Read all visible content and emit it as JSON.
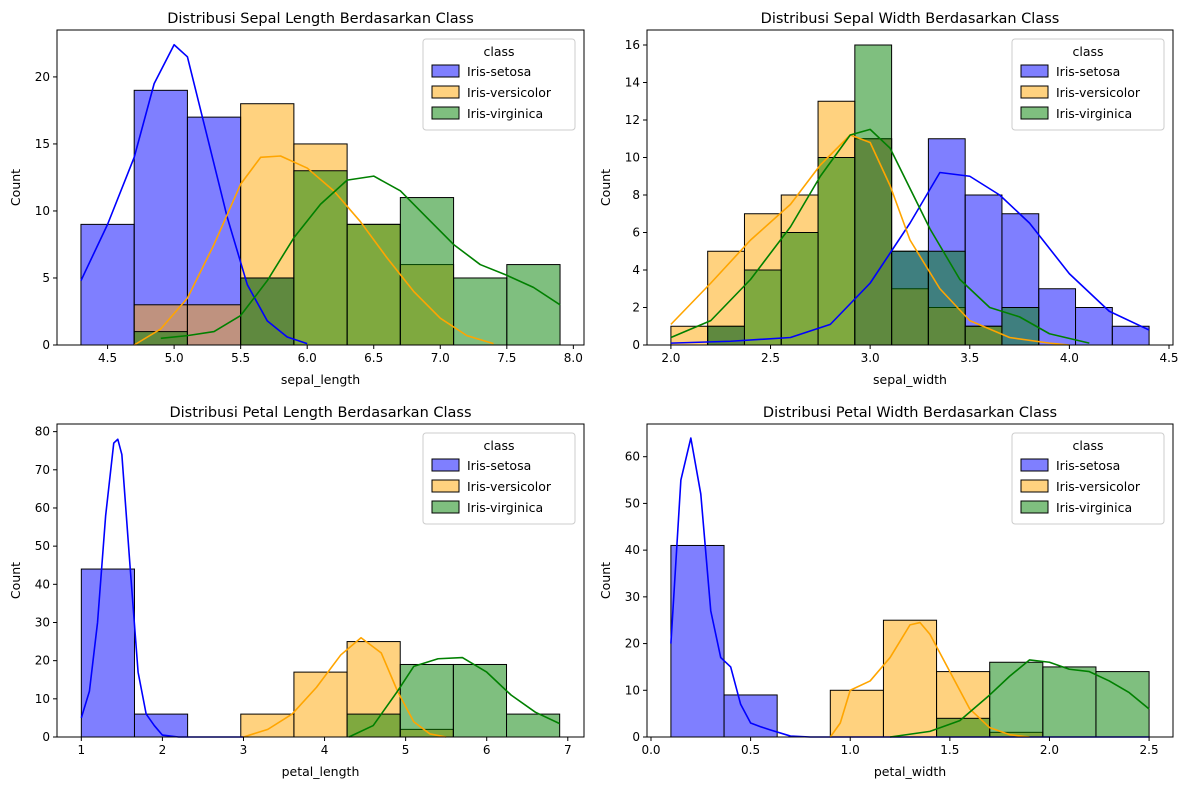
{
  "colors": {
    "setosa": "#0000ff",
    "versicolor": "#ffa500",
    "virginica": "#008000"
  },
  "chart_data": [
    {
      "type": "bar",
      "title": "Distribusi Sepal Length Berdasarkan Class",
      "xlabel": "sepal_length",
      "ylabel": "Count",
      "xlim": [
        4.12,
        8.08
      ],
      "ylim": [
        0,
        23.5
      ],
      "xticks": [
        4.5,
        5.0,
        5.5,
        6.0,
        6.5,
        7.0,
        7.5,
        8.0
      ],
      "xtick_labels": [
        "4.5",
        "5.0",
        "5.5",
        "6.0",
        "6.5",
        "7.0",
        "7.5",
        "8.0"
      ],
      "yticks": [
        0,
        5,
        10,
        15,
        20
      ],
      "ytick_labels": [
        "0",
        "5",
        "10",
        "15",
        "20"
      ],
      "bin_edges": [
        4.3,
        4.7,
        5.1,
        5.5,
        5.9,
        6.3,
        6.7,
        7.1,
        7.5,
        7.9
      ],
      "legend": {
        "title": "class",
        "position": "top-right",
        "entries": [
          "Iris-setosa",
          "Iris-versicolor",
          "Iris-virginica"
        ]
      },
      "series": [
        {
          "name": "Iris-setosa",
          "color": "#0000ff",
          "values": [
            9,
            19,
            17,
            5,
            0,
            0,
            0,
            0,
            0
          ],
          "kde": [
            [
              4.3,
              4.8
            ],
            [
              4.5,
              9
            ],
            [
              4.7,
              14
            ],
            [
              4.85,
              19.5
            ],
            [
              5.0,
              22.4
            ],
            [
              5.1,
              21.5
            ],
            [
              5.25,
              15.5
            ],
            [
              5.4,
              9.5
            ],
            [
              5.55,
              4.5
            ],
            [
              5.7,
              1.8
            ],
            [
              5.85,
              0.6
            ],
            [
              6.0,
              0.1
            ]
          ]
        },
        {
          "name": "Iris-versicolor",
          "color": "#ffa500",
          "values": [
            0,
            3,
            3,
            18,
            15,
            9,
            6,
            0,
            0
          ],
          "kde": [
            [
              4.7,
              0
            ],
            [
              4.9,
              1.2
            ],
            [
              5.1,
              3.5
            ],
            [
              5.3,
              7.5
            ],
            [
              5.5,
              12
            ],
            [
              5.65,
              14
            ],
            [
              5.8,
              14.1
            ],
            [
              6.0,
              13.2
            ],
            [
              6.2,
              11.5
            ],
            [
              6.4,
              9.2
            ],
            [
              6.6,
              6.5
            ],
            [
              6.8,
              4
            ],
            [
              7.0,
              2
            ],
            [
              7.2,
              0.7
            ],
            [
              7.4,
              0.1
            ]
          ]
        },
        {
          "name": "Iris-virginica",
          "color": "#008000",
          "values": [
            0,
            1,
            0,
            5,
            13,
            9,
            11,
            5,
            6
          ],
          "kde": [
            [
              4.9,
              0.5
            ],
            [
              5.1,
              0.7
            ],
            [
              5.3,
              1
            ],
            [
              5.5,
              2.2
            ],
            [
              5.7,
              4.8
            ],
            [
              5.9,
              8
            ],
            [
              6.1,
              10.5
            ],
            [
              6.3,
              12.3
            ],
            [
              6.5,
              12.6
            ],
            [
              6.7,
              11.5
            ],
            [
              6.9,
              9.5
            ],
            [
              7.1,
              7.5
            ],
            [
              7.3,
              6
            ],
            [
              7.5,
              5.2
            ],
            [
              7.7,
              4.3
            ],
            [
              7.9,
              3
            ]
          ]
        }
      ]
    },
    {
      "type": "bar",
      "title": "Distribusi Sepal Width Berdasarkan Class",
      "xlabel": "sepal_width",
      "ylabel": "Count",
      "xlim": [
        1.88,
        4.52
      ],
      "ylim": [
        0,
        16.8
      ],
      "xticks": [
        2.0,
        2.5,
        3.0,
        3.5,
        4.0,
        4.5
      ],
      "xtick_labels": [
        "2.0",
        "2.5",
        "3.0",
        "3.5",
        "4.0",
        "4.5"
      ],
      "yticks": [
        0,
        2,
        4,
        6,
        8,
        10,
        12,
        14,
        16
      ],
      "ytick_labels": [
        "0",
        "2",
        "4",
        "6",
        "8",
        "10",
        "12",
        "14",
        "16"
      ],
      "bin_edges": [
        2.0,
        2.1846,
        2.3692,
        2.5538,
        2.7385,
        2.9231,
        3.1077,
        3.2923,
        3.4769,
        3.6615,
        3.8462,
        4.0308,
        4.2154,
        4.4
      ],
      "legend": {
        "title": "class",
        "position": "top-right",
        "entries": [
          "Iris-setosa",
          "Iris-versicolor",
          "Iris-virginica"
        ]
      },
      "series": [
        {
          "name": "Iris-setosa",
          "color": "#0000ff",
          "values": [
            0,
            1,
            0,
            0,
            0,
            11,
            5,
            11,
            8,
            7,
            3,
            2,
            1
          ],
          "kde": [
            [
              2.0,
              0.1
            ],
            [
              2.3,
              0.2
            ],
            [
              2.6,
              0.4
            ],
            [
              2.8,
              1.1
            ],
            [
              3.0,
              3.3
            ],
            [
              3.2,
              6.5
            ],
            [
              3.35,
              9.2
            ],
            [
              3.5,
              9
            ],
            [
              3.65,
              8
            ],
            [
              3.8,
              6.5
            ],
            [
              4.0,
              3.8
            ],
            [
              4.2,
              1.8
            ],
            [
              4.4,
              0.8
            ]
          ]
        },
        {
          "name": "Iris-versicolor",
          "color": "#ffa500",
          "values": [
            1,
            5,
            7,
            8,
            13,
            11,
            3,
            2,
            1,
            0,
            0,
            0,
            0
          ],
          "kde": [
            [
              2.0,
              1.1
            ],
            [
              2.2,
              3.3
            ],
            [
              2.4,
              5.6
            ],
            [
              2.6,
              7.5
            ],
            [
              2.75,
              9.6
            ],
            [
              2.9,
              11.2
            ],
            [
              3.0,
              10.8
            ],
            [
              3.1,
              8.5
            ],
            [
              3.2,
              5.6
            ],
            [
              3.35,
              3
            ],
            [
              3.5,
              1.3
            ],
            [
              3.7,
              0.4
            ],
            [
              3.9,
              0.1
            ],
            [
              4.0,
              0
            ]
          ]
        },
        {
          "name": "Iris-virginica",
          "color": "#008000",
          "values": [
            0,
            1,
            4,
            6,
            10,
            16,
            5,
            5,
            1,
            2,
            0,
            0,
            0
          ],
          "kde": [
            [
              2.0,
              0.4
            ],
            [
              2.2,
              1.3
            ],
            [
              2.4,
              3.5
            ],
            [
              2.6,
              6.3
            ],
            [
              2.75,
              9
            ],
            [
              2.9,
              11.2
            ],
            [
              3.0,
              11.5
            ],
            [
              3.1,
              10.5
            ],
            [
              3.3,
              6.2
            ],
            [
              3.45,
              3.5
            ],
            [
              3.6,
              2
            ],
            [
              3.75,
              1.5
            ],
            [
              3.9,
              0.6
            ],
            [
              4.1,
              0.1
            ]
          ]
        }
      ]
    },
    {
      "type": "bar",
      "title": "Distribusi Petal Length Berdasarkan Class",
      "xlabel": "petal_length",
      "ylabel": "Count",
      "xlim": [
        0.7,
        7.2
      ],
      "ylim": [
        0,
        82
      ],
      "xticks": [
        1,
        2,
        3,
        4,
        5,
        6,
        7
      ],
      "xtick_labels": [
        "1",
        "2",
        "3",
        "4",
        "5",
        "6",
        "7"
      ],
      "yticks": [
        0,
        10,
        20,
        30,
        40,
        50,
        60,
        70,
        80
      ],
      "ytick_labels": [
        "0",
        "10",
        "20",
        "30",
        "40",
        "50",
        "60",
        "70",
        "80"
      ],
      "bin_edges": [
        1.0,
        1.6556,
        2.3111,
        2.9667,
        3.6222,
        4.2778,
        4.9333,
        5.5889,
        6.2444,
        6.9
      ],
      "legend": {
        "title": "class",
        "position": "top-right",
        "entries": [
          "Iris-setosa",
          "Iris-versicolor",
          "Iris-virginica"
        ]
      },
      "series": [
        {
          "name": "Iris-setosa",
          "color": "#0000ff",
          "values": [
            44,
            6,
            0,
            0,
            0,
            0,
            0,
            0,
            0
          ],
          "kde": [
            [
              1.0,
              5
            ],
            [
              1.1,
              12
            ],
            [
              1.2,
              30
            ],
            [
              1.3,
              58
            ],
            [
              1.4,
              77
            ],
            [
              1.45,
              78
            ],
            [
              1.5,
              74
            ],
            [
              1.6,
              45
            ],
            [
              1.7,
              17
            ],
            [
              1.8,
              6
            ],
            [
              1.9,
              3
            ],
            [
              2.0,
              0.5
            ],
            [
              2.2,
              0
            ],
            [
              3.0,
              0
            ]
          ]
        },
        {
          "name": "Iris-versicolor",
          "color": "#ffa500",
          "values": [
            0,
            0,
            0,
            6,
            17,
            25,
            2,
            0,
            0
          ],
          "kde": [
            [
              3.0,
              0
            ],
            [
              3.3,
              2
            ],
            [
              3.6,
              6
            ],
            [
              3.9,
              13
            ],
            [
              4.2,
              21.5
            ],
            [
              4.45,
              26
            ],
            [
              4.7,
              22
            ],
            [
              4.9,
              12
            ],
            [
              5.1,
              4
            ],
            [
              5.3,
              0.8
            ],
            [
              5.5,
              0
            ]
          ]
        },
        {
          "name": "Iris-virginica",
          "color": "#008000",
          "values": [
            0,
            0,
            0,
            0,
            0,
            6,
            19,
            19,
            6
          ],
          "kde": [
            [
              4.3,
              0
            ],
            [
              4.6,
              3
            ],
            [
              4.9,
              12
            ],
            [
              5.1,
              18.5
            ],
            [
              5.4,
              20.5
            ],
            [
              5.7,
              20.8
            ],
            [
              6.0,
              17
            ],
            [
              6.3,
              11
            ],
            [
              6.6,
              6.5
            ],
            [
              6.9,
              3.5
            ]
          ]
        }
      ]
    },
    {
      "type": "bar",
      "title": "Distribusi Petal Width Berdasarkan Class",
      "xlabel": "petal_width",
      "ylabel": "Count",
      "xlim": [
        -0.02,
        2.62
      ],
      "ylim": [
        0,
        67
      ],
      "xticks": [
        0.0,
        0.5,
        1.0,
        1.5,
        2.0,
        2.5
      ],
      "xtick_labels": [
        "0.0",
        "0.5",
        "1.0",
        "1.5",
        "2.0",
        "2.5"
      ],
      "yticks": [
        0,
        10,
        20,
        30,
        40,
        50,
        60
      ],
      "ytick_labels": [
        "0",
        "10",
        "20",
        "30",
        "40",
        "50",
        "60"
      ],
      "bin_edges": [
        0.1,
        0.3667,
        0.6333,
        0.9,
        1.1667,
        1.4333,
        1.7,
        1.9667,
        2.2333,
        2.5
      ],
      "legend": {
        "title": "class",
        "position": "top-right",
        "entries": [
          "Iris-setosa",
          "Iris-versicolor",
          "Iris-virginica"
        ]
      },
      "series": [
        {
          "name": "Iris-setosa",
          "color": "#0000ff",
          "values": [
            41,
            9,
            0,
            0,
            0,
            0,
            0,
            0,
            0
          ],
          "kde": [
            [
              0.1,
              20
            ],
            [
              0.15,
              55
            ],
            [
              0.2,
              64
            ],
            [
              0.25,
              52
            ],
            [
              0.3,
              27
            ],
            [
              0.35,
              17
            ],
            [
              0.4,
              15
            ],
            [
              0.45,
              7
            ],
            [
              0.5,
              3
            ],
            [
              0.55,
              2.2
            ],
            [
              0.6,
              1.5
            ],
            [
              0.7,
              0.2
            ],
            [
              0.8,
              0
            ],
            [
              1.0,
              0
            ],
            [
              2.5,
              0
            ]
          ]
        },
        {
          "name": "Iris-versicolor",
          "color": "#ffa500",
          "values": [
            0,
            0,
            0,
            10,
            25,
            14,
            1,
            0,
            0
          ],
          "kde": [
            [
              0.9,
              0
            ],
            [
              0.95,
              3
            ],
            [
              1.0,
              10
            ],
            [
              1.1,
              12
            ],
            [
              1.2,
              17
            ],
            [
              1.3,
              24
            ],
            [
              1.35,
              24.5
            ],
            [
              1.4,
              22
            ],
            [
              1.5,
              14
            ],
            [
              1.6,
              6
            ],
            [
              1.7,
              2
            ],
            [
              1.8,
              0.5
            ],
            [
              1.9,
              0
            ]
          ]
        },
        {
          "name": "Iris-virginica",
          "color": "#008000",
          "values": [
            0,
            0,
            0,
            0,
            0,
            4,
            16,
            15,
            14
          ],
          "kde": [
            [
              1.2,
              0
            ],
            [
              1.4,
              1.2
            ],
            [
              1.55,
              3.5
            ],
            [
              1.7,
              9
            ],
            [
              1.8,
              13
            ],
            [
              1.9,
              16.5
            ],
            [
              2.0,
              16
            ],
            [
              2.1,
              14.5
            ],
            [
              2.2,
              14
            ],
            [
              2.3,
              12
            ],
            [
              2.4,
              9.5
            ],
            [
              2.5,
              6
            ]
          ]
        }
      ]
    }
  ]
}
